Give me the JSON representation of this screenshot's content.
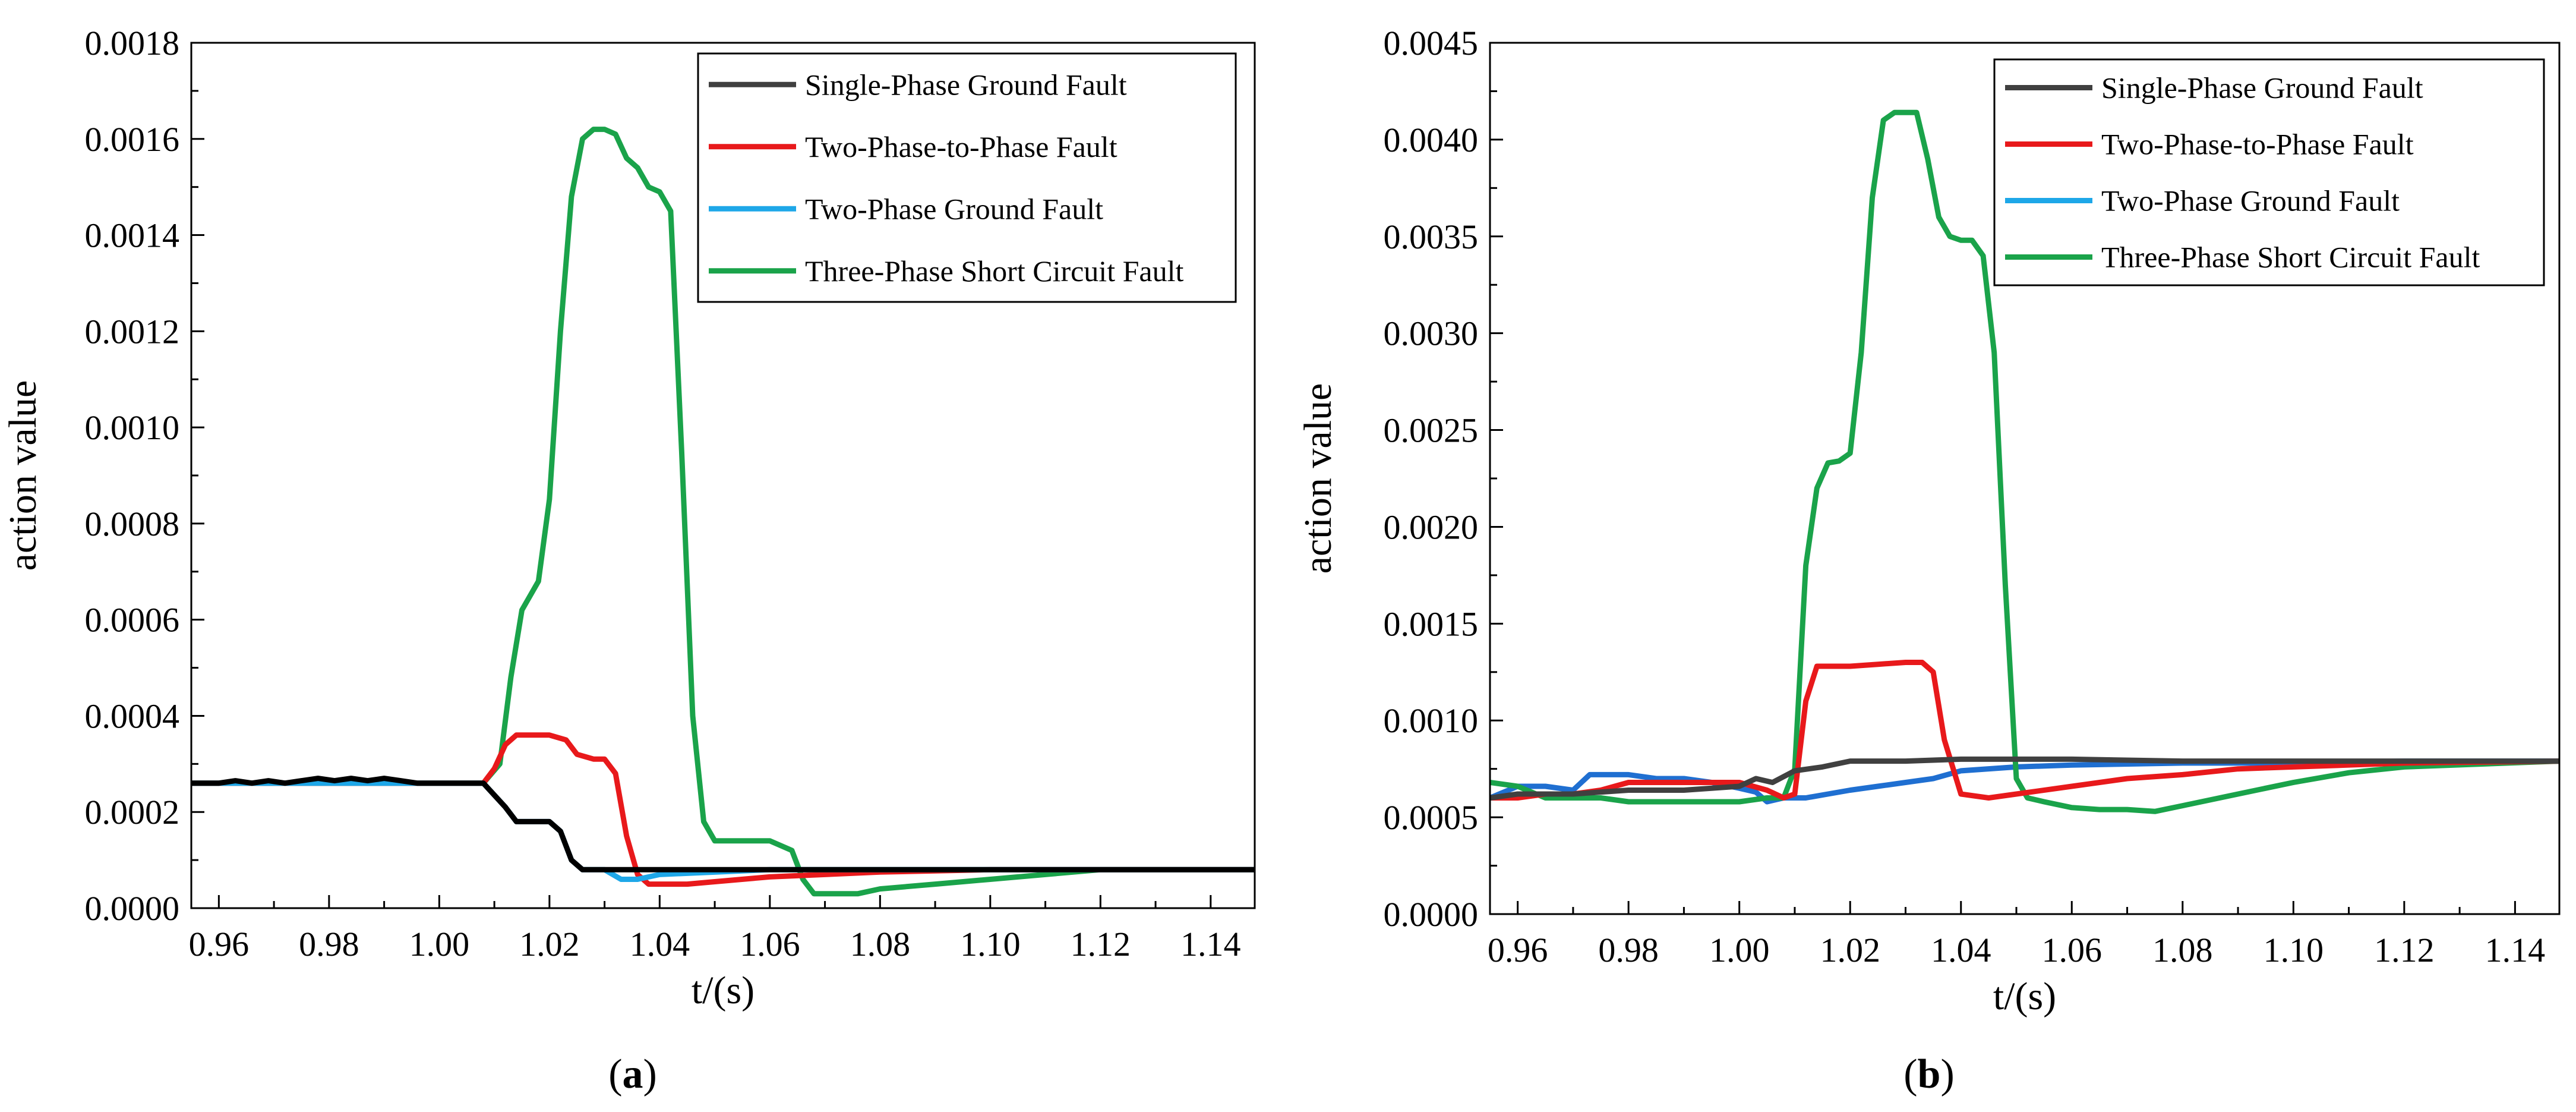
{
  "figure": {
    "panel_labels": [
      {
        "open": "(",
        "letter": "a",
        "close": ")"
      },
      {
        "open": "(",
        "letter": "b",
        "close": ")"
      }
    ]
  },
  "chart_data": [
    {
      "type": "line",
      "panel": "a",
      "xlabel": "t/(s)",
      "ylabel": "action value",
      "xlim": [
        0.955,
        1.148
      ],
      "ylim": [
        0.0,
        0.0018
      ],
      "xticks": [
        0.96,
        0.98,
        1.0,
        1.02,
        1.04,
        1.06,
        1.08,
        1.1,
        1.12,
        1.14
      ],
      "xtick_labels": [
        "0.96",
        "0.98",
        "1.00",
        "1.02",
        "1.04",
        "1.06",
        "1.08",
        "1.10",
        "1.12",
        "1.14"
      ],
      "yticks": [
        0,
        0.0002,
        0.0004,
        0.0006,
        0.0008,
        0.001,
        0.0012,
        0.0014,
        0.0016,
        0.0018
      ],
      "ytick_labels": [
        "0.0000",
        "0.0002",
        "0.0004",
        "0.0006",
        "0.0008",
        "0.0010",
        "0.0012",
        "0.0014",
        "0.0016",
        "0.0018"
      ],
      "legend_position": "top-right",
      "series": [
        {
          "name": "Three-Phase Short Circuit Fault",
          "color": "#1aa34a",
          "x": [
            0.955,
            1.0,
            1.008,
            1.011,
            1.013,
            1.015,
            1.018,
            1.02,
            1.022,
            1.024,
            1.026,
            1.028,
            1.03,
            1.032,
            1.034,
            1.036,
            1.038,
            1.04,
            1.042,
            1.044,
            1.046,
            1.048,
            1.05,
            1.052,
            1.055,
            1.06,
            1.064,
            1.066,
            1.068,
            1.072,
            1.076,
            1.08,
            1.09,
            1.1,
            1.11,
            1.12,
            1.148
          ],
          "y": [
            0.00026,
            0.00026,
            0.00026,
            0.0003,
            0.00048,
            0.00062,
            0.00068,
            0.00085,
            0.0012,
            0.00148,
            0.0016,
            0.00162,
            0.00162,
            0.00161,
            0.00156,
            0.00154,
            0.0015,
            0.00149,
            0.00145,
            0.00095,
            0.0004,
            0.00018,
            0.00014,
            0.00014,
            0.00014,
            0.00014,
            0.00012,
            6e-05,
            3e-05,
            3e-05,
            3e-05,
            4e-05,
            5e-05,
            6e-05,
            7e-05,
            8e-05,
            8e-05
          ]
        },
        {
          "name": "Two-Phase-to-Phase Fault",
          "color": "#e8191b",
          "x": [
            0.955,
            1.0,
            1.008,
            1.01,
            1.012,
            1.014,
            1.016,
            1.02,
            1.023,
            1.025,
            1.028,
            1.03,
            1.032,
            1.034,
            1.036,
            1.038,
            1.04,
            1.045,
            1.05,
            1.06,
            1.08,
            1.1,
            1.148
          ],
          "y": [
            0.00026,
            0.00026,
            0.00026,
            0.00029,
            0.00034,
            0.00036,
            0.00036,
            0.00036,
            0.00035,
            0.00032,
            0.00031,
            0.00031,
            0.00028,
            0.00015,
            7e-05,
            5e-05,
            5e-05,
            5e-05,
            5.5e-05,
            6.5e-05,
            7.5e-05,
            8e-05,
            8e-05
          ]
        },
        {
          "name": "Two-Phase Ground Fault",
          "color": "#1ea7e8",
          "x": [
            0.955,
            1.008,
            1.012,
            1.014,
            1.02,
            1.022,
            1.024,
            1.026,
            1.03,
            1.033,
            1.036,
            1.04,
            1.06,
            1.148
          ],
          "y": [
            0.00026,
            0.00026,
            0.00021,
            0.00018,
            0.00018,
            0.00016,
            0.0001,
            8e-05,
            8e-05,
            6e-05,
            6e-05,
            7e-05,
            8e-05,
            8e-05
          ]
        },
        {
          "name": "Single-Phase Ground Fault",
          "color": "#000000",
          "x": [
            0.955,
            0.96,
            0.963,
            0.966,
            0.969,
            0.972,
            0.975,
            0.978,
            0.981,
            0.984,
            0.987,
            0.99,
            0.993,
            0.996,
            1.0,
            1.008,
            1.012,
            1.014,
            1.02,
            1.022,
            1.024,
            1.026,
            1.03,
            1.04,
            1.148
          ],
          "y": [
            0.00026,
            0.00026,
            0.000265,
            0.00026,
            0.000265,
            0.00026,
            0.000265,
            0.00027,
            0.000265,
            0.00027,
            0.000265,
            0.00027,
            0.000265,
            0.00026,
            0.00026,
            0.00026,
            0.00021,
            0.00018,
            0.00018,
            0.00016,
            0.0001,
            8e-05,
            8e-05,
            8e-05,
            8e-05
          ]
        }
      ],
      "legend": [
        {
          "label": "Single-Phase Ground Fault",
          "color": "#404040"
        },
        {
          "label": "Two-Phase-to-Phase Fault",
          "color": "#e8191b"
        },
        {
          "label": "Two-Phase Ground Fault",
          "color": "#1ea7e8"
        },
        {
          "label": "Three-Phase Short Circuit Fault",
          "color": "#1aa34a"
        }
      ]
    },
    {
      "type": "line",
      "panel": "b",
      "xlabel": "t/(s)",
      "ylabel": "action value",
      "xlim": [
        0.955,
        1.148
      ],
      "ylim": [
        0.0,
        0.0045
      ],
      "xticks": [
        0.96,
        0.98,
        1.0,
        1.02,
        1.04,
        1.06,
        1.08,
        1.1,
        1.12,
        1.14
      ],
      "xtick_labels": [
        "0.96",
        "0.98",
        "1.00",
        "1.02",
        "1.04",
        "1.06",
        "1.08",
        "1.10",
        "1.12",
        "1.14"
      ],
      "yticks": [
        0,
        0.0005,
        0.001,
        0.0015,
        0.002,
        0.0025,
        0.003,
        0.0035,
        0.004,
        0.0045
      ],
      "ytick_labels": [
        "0.0000",
        "0.0005",
        "0.0010",
        "0.0015",
        "0.0020",
        "0.0025",
        "0.0030",
        "0.0035",
        "0.0040",
        "0.0045"
      ],
      "legend_position": "top-right",
      "series": [
        {
          "name": "Two-Phase Ground Fault",
          "color": "#1f6fd1",
          "x": [
            0.955,
            0.96,
            0.965,
            0.97,
            0.973,
            0.976,
            0.98,
            0.985,
            0.99,
            0.995,
            1.0,
            1.003,
            1.005,
            1.008,
            1.012,
            1.016,
            1.02,
            1.025,
            1.03,
            1.035,
            1.04,
            1.05,
            1.06,
            1.08,
            1.1,
            1.12,
            1.148
          ],
          "y": [
            0.0006,
            0.00066,
            0.00066,
            0.00064,
            0.00072,
            0.00072,
            0.00072,
            0.0007,
            0.0007,
            0.00068,
            0.00065,
            0.00063,
            0.00058,
            0.0006,
            0.0006,
            0.00062,
            0.00064,
            0.00066,
            0.00068,
            0.0007,
            0.00074,
            0.00076,
            0.00077,
            0.00078,
            0.00078,
            0.00079,
            0.00079
          ]
        },
        {
          "name": "Three-Phase Short Circuit Fault",
          "color": "#1aa34a",
          "x": [
            0.955,
            0.96,
            0.965,
            0.97,
            0.975,
            0.98,
            0.99,
            1.0,
            1.005,
            1.008,
            1.01,
            1.012,
            1.014,
            1.016,
            1.018,
            1.02,
            1.022,
            1.024,
            1.026,
            1.028,
            1.03,
            1.032,
            1.034,
            1.036,
            1.038,
            1.04,
            1.042,
            1.044,
            1.046,
            1.048,
            1.05,
            1.052,
            1.055,
            1.06,
            1.065,
            1.07,
            1.075,
            1.08,
            1.09,
            1.1,
            1.11,
            1.12,
            1.148
          ],
          "y": [
            0.00068,
            0.00066,
            0.0006,
            0.0006,
            0.0006,
            0.00058,
            0.00058,
            0.00058,
            0.0006,
            0.0006,
            0.00075,
            0.0018,
            0.0022,
            0.00233,
            0.00234,
            0.00238,
            0.0029,
            0.0037,
            0.0041,
            0.00414,
            0.00414,
            0.00414,
            0.0039,
            0.0036,
            0.0035,
            0.00348,
            0.00348,
            0.0034,
            0.0029,
            0.0017,
            0.0007,
            0.0006,
            0.00058,
            0.00055,
            0.00054,
            0.00054,
            0.00053,
            0.00056,
            0.00062,
            0.00068,
            0.00073,
            0.00076,
            0.00079
          ]
        },
        {
          "name": "Two-Phase-to-Phase Fault",
          "color": "#e8191b",
          "x": [
            0.955,
            0.96,
            0.965,
            0.97,
            0.975,
            0.98,
            0.99,
            1.0,
            1.005,
            1.008,
            1.01,
            1.012,
            1.014,
            1.016,
            1.02,
            1.025,
            1.03,
            1.033,
            1.035,
            1.037,
            1.04,
            1.045,
            1.05,
            1.06,
            1.07,
            1.08,
            1.09,
            1.1,
            1.12,
            1.148
          ],
          "y": [
            0.0006,
            0.0006,
            0.00062,
            0.00062,
            0.00064,
            0.00068,
            0.00068,
            0.00068,
            0.00064,
            0.0006,
            0.00062,
            0.0011,
            0.00128,
            0.00128,
            0.00128,
            0.00129,
            0.0013,
            0.0013,
            0.00125,
            0.0009,
            0.00062,
            0.0006,
            0.00062,
            0.00066,
            0.0007,
            0.00072,
            0.00075,
            0.00076,
            0.00078,
            0.00079
          ]
        },
        {
          "name": "Single-Phase Ground Fault",
          "color": "#404040",
          "x": [
            0.955,
            0.96,
            0.97,
            0.98,
            0.99,
            1.0,
            1.003,
            1.006,
            1.01,
            1.015,
            1.02,
            1.03,
            1.04,
            1.06,
            1.08,
            1.1,
            1.12,
            1.148
          ],
          "y": [
            0.0006,
            0.00062,
            0.00062,
            0.00064,
            0.00064,
            0.00066,
            0.0007,
            0.00068,
            0.00074,
            0.00076,
            0.00079,
            0.00079,
            0.0008,
            0.0008,
            0.00079,
            0.00079,
            0.00079,
            0.00079
          ]
        }
      ],
      "legend": [
        {
          "label": "Single-Phase Ground Fault",
          "color": "#404040"
        },
        {
          "label": "Two-Phase-to-Phase Fault",
          "color": "#e8191b"
        },
        {
          "label": "Two-Phase Ground Fault",
          "color": "#1ea7e8"
        },
        {
          "label": "Three-Phase Short Circuit Fault",
          "color": "#1aa34a"
        }
      ]
    }
  ]
}
